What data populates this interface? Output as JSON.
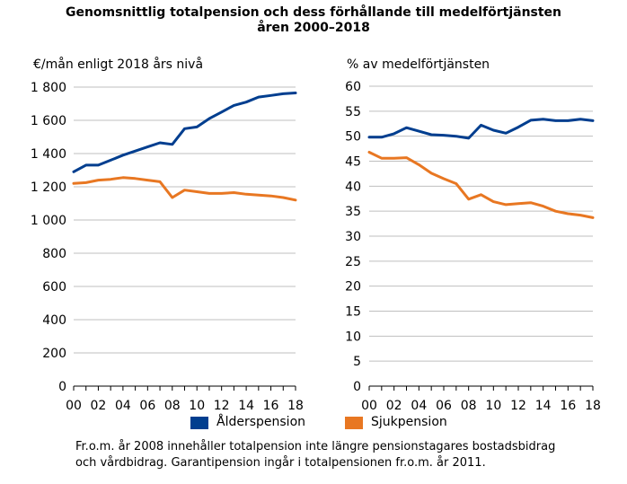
{
  "title_line1": "Genomsnittlig totalpension och dess förhållande till medelförtjänsten",
  "title_line2": "åren 2000–2018",
  "footnote_line1": "Fr.o.m. år 2008 innehåller totalpension inte längre pensionstagares bostadsbidrag",
  "footnote_line2": "och vårdbidrag. Garantipension ingår i totalpensionen fr.o.m. år 2011.",
  "colors": {
    "alder": "#003e8f",
    "sjuk": "#e87722",
    "grid": "#bfbfbf"
  },
  "legend": [
    {
      "name": "Ålderspension",
      "color": "#003e8f"
    },
    {
      "name": "Sjukpension",
      "color": "#e87722"
    }
  ],
  "chart_data": [
    {
      "type": "line",
      "ylabel": "€/mån enligt 2018 års nivå",
      "x": [
        2000,
        2001,
        2002,
        2003,
        2004,
        2005,
        2006,
        2007,
        2008,
        2009,
        2010,
        2011,
        2012,
        2013,
        2014,
        2015,
        2016,
        2017,
        2018
      ],
      "x_tick_labels": [
        "00",
        "02",
        "04",
        "06",
        "08",
        "10",
        "12",
        "14",
        "16",
        "18"
      ],
      "x_tick_values": [
        2000,
        2002,
        2004,
        2006,
        2008,
        2010,
        2012,
        2014,
        2016,
        2018
      ],
      "ylim": [
        0,
        1800
      ],
      "y_ticks": [
        0,
        200,
        400,
        600,
        800,
        1000,
        1200,
        1400,
        1600,
        1800
      ],
      "y_tick_labels": [
        "0",
        "200",
        "400",
        "600",
        "800",
        "1 000",
        "1 200",
        "1 400",
        "1 600",
        "1 800"
      ],
      "grid": true,
      "series": [
        {
          "name": "Ålderspension",
          "color": "#003e8f",
          "values": [
            1290,
            1330,
            1330,
            1360,
            1390,
            1415,
            1440,
            1465,
            1455,
            1550,
            1560,
            1610,
            1650,
            1690,
            1710,
            1740,
            1750,
            1760,
            1765
          ]
        },
        {
          "name": "Sjukpension",
          "color": "#e87722",
          "values": [
            1220,
            1225,
            1240,
            1245,
            1255,
            1250,
            1240,
            1230,
            1135,
            1180,
            1170,
            1160,
            1160,
            1165,
            1155,
            1150,
            1145,
            1135,
            1120
          ]
        }
      ]
    },
    {
      "type": "line",
      "ylabel": "% av medelförtjänsten",
      "x": [
        2000,
        2001,
        2002,
        2003,
        2004,
        2005,
        2006,
        2007,
        2008,
        2009,
        2010,
        2011,
        2012,
        2013,
        2014,
        2015,
        2016,
        2017,
        2018
      ],
      "x_tick_labels": [
        "00",
        "02",
        "04",
        "06",
        "08",
        "10",
        "12",
        "14",
        "16",
        "18"
      ],
      "x_tick_values": [
        2000,
        2002,
        2004,
        2006,
        2008,
        2010,
        2012,
        2014,
        2016,
        2018
      ],
      "ylim": [
        0,
        60
      ],
      "y_ticks": [
        0,
        5,
        10,
        15,
        20,
        25,
        30,
        35,
        40,
        45,
        50,
        55,
        60
      ],
      "y_tick_labels": [
        "0",
        "5",
        "10",
        "15",
        "20",
        "25",
        "30",
        "35",
        "40",
        "45",
        "50",
        "55",
        "60"
      ],
      "grid": true,
      "series": [
        {
          "name": "Ålderspension",
          "color": "#003e8f",
          "values": [
            49.8,
            49.8,
            50.5,
            51.7,
            51.0,
            50.3,
            50.2,
            50.0,
            49.6,
            52.2,
            51.2,
            50.6,
            51.8,
            53.2,
            53.4,
            53.1,
            53.1,
            53.4,
            53.1
          ]
        },
        {
          "name": "Sjukpension",
          "color": "#e87722",
          "values": [
            46.8,
            45.6,
            45.6,
            45.7,
            44.3,
            42.6,
            41.5,
            40.5,
            37.4,
            38.3,
            36.9,
            36.3,
            36.5,
            36.7,
            36.0,
            35.0,
            34.5,
            34.2,
            33.7
          ]
        }
      ]
    }
  ]
}
